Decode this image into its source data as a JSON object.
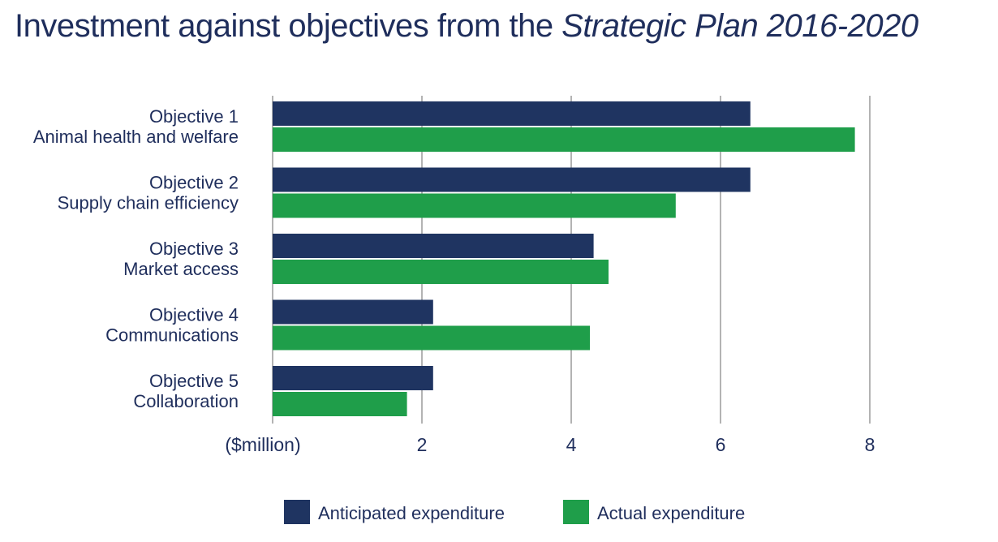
{
  "title": {
    "main": "Investment against objectives from the ",
    "italic": "Strategic Plan 2016-2020"
  },
  "colors": {
    "anticipated": "#1f3461",
    "actual": "#1f9e4a",
    "grid": "#9a9a9a",
    "text": "#1f2e5c"
  },
  "chart_data": {
    "type": "bar",
    "orientation": "horizontal",
    "categories": [
      [
        "Objective 1",
        "Animal health and welfare"
      ],
      [
        "Objective 2",
        "Supply chain efficiency"
      ],
      [
        "Objective 3",
        "Market access"
      ],
      [
        "Objective 4",
        "Communications"
      ],
      [
        "Objective 5",
        "Collaboration"
      ]
    ],
    "series": [
      {
        "name": "Anticipated expenditure",
        "values": [
          6.4,
          6.4,
          4.3,
          2.15,
          2.15
        ]
      },
      {
        "name": "Actual expenditure",
        "values": [
          7.8,
          5.4,
          4.5,
          4.25,
          1.8
        ]
      }
    ],
    "xlabel": "($million)",
    "xlim": [
      0,
      8
    ],
    "xticks": [
      2,
      4,
      6,
      8
    ],
    "grid": true,
    "legend": "bottom"
  }
}
